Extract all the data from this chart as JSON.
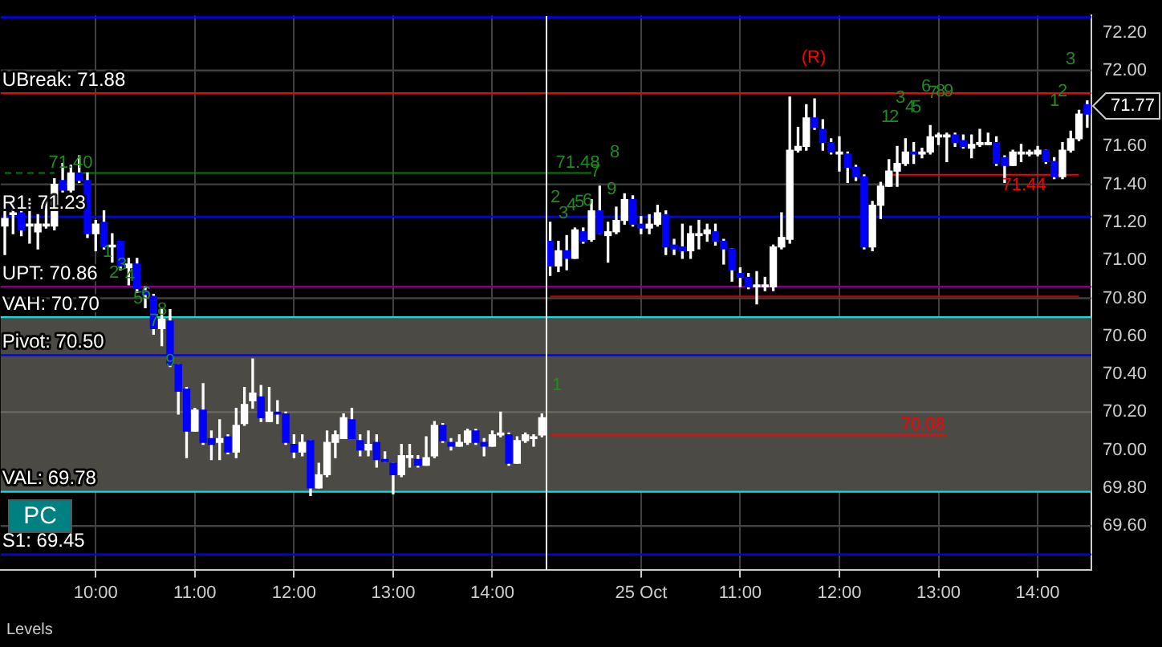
{
  "chart_data": {
    "type": "candlestick",
    "ylim": [
      69.37,
      72.29
    ],
    "categories": [
      null,
      null,
      null,
      null,
      null,
      null,
      null,
      null,
      null,
      null,
      null,
      "10:00",
      null,
      null,
      null,
      null,
      null,
      null,
      null,
      null,
      null,
      null,
      null,
      "11:00",
      null,
      null,
      null,
      null,
      null,
      null,
      null,
      null,
      null,
      null,
      null,
      "12:00",
      null,
      null,
      null,
      null,
      null,
      null,
      null,
      null,
      null,
      null,
      null,
      "13:00",
      null,
      null,
      null,
      null,
      null,
      null,
      null,
      null,
      null,
      null,
      null,
      "14:00",
      null,
      null,
      null,
      null,
      null,
      null,
      null,
      null,
      null,
      null,
      null,
      null,
      null,
      null,
      null,
      null,
      null,
      "25 Oct",
      null,
      null,
      null,
      null,
      null,
      null,
      null,
      null,
      null,
      null,
      null,
      "11:00",
      null,
      null,
      null,
      null,
      null,
      null,
      null,
      null,
      null,
      null,
      null,
      "12:00",
      null,
      null,
      null,
      null,
      null,
      null,
      null,
      null,
      null,
      null,
      null,
      "13:00",
      null,
      null,
      null,
      null,
      null,
      null,
      null,
      null,
      null,
      null,
      null,
      "14:00",
      null,
      null,
      null,
      null,
      null,
      null
    ],
    "yticks": [
      {
        "value": 69.6,
        "label": "69.60"
      },
      {
        "value": 69.8,
        "label": "69.80"
      },
      {
        "value": 70,
        "label": "70.00"
      },
      {
        "value": 70.2,
        "label": "70.20"
      },
      {
        "value": 70.4,
        "label": "70.40"
      },
      {
        "value": 70.6,
        "label": "70.60"
      },
      {
        "value": 70.8,
        "label": "70.80"
      },
      {
        "value": 71,
        "label": "71.00"
      },
      {
        "value": 71.2,
        "label": "71.20"
      },
      {
        "value": 71.4,
        "label": "71.40"
      },
      {
        "value": 71.6,
        "label": "71.60"
      },
      {
        "value": 72,
        "label": "72.00"
      },
      {
        "value": 72.2,
        "label": "72.20"
      }
    ],
    "grid": "x",
    "legend": false,
    "series": [
      {
        "type": "line",
        "color": "#008000",
        "line_style": "dashed",
        "marker": "none",
        "values": [
          71.46,
          71.46,
          71.46,
          71.46,
          71.46,
          71.46,
          71.46,
          null,
          null,
          null,
          null,
          null,
          null,
          null,
          null,
          null,
          null,
          null,
          null,
          null,
          null,
          null,
          null,
          null,
          null,
          null,
          null,
          null,
          null,
          null,
          null,
          null,
          null,
          null,
          null,
          null,
          null,
          null,
          null,
          null,
          null,
          null,
          null,
          null,
          null,
          null,
          null,
          null,
          null,
          null,
          null,
          null,
          null,
          null,
          null,
          null,
          null,
          null,
          null,
          null,
          null,
          null,
          null,
          null,
          null,
          null,
          null,
          null,
          null,
          null,
          null,
          null,
          null,
          null,
          null,
          null,
          null,
          null,
          null,
          null,
          null,
          null,
          null,
          null,
          null,
          null,
          null,
          null,
          null,
          null,
          null,
          null,
          null,
          null,
          null,
          null,
          null,
          null,
          null,
          null,
          null,
          null,
          null,
          null,
          null,
          null,
          null,
          null,
          null,
          null,
          null,
          null,
          null,
          null,
          null,
          null,
          null,
          null,
          null,
          null,
          null,
          null,
          null,
          null,
          null,
          null,
          null,
          null,
          null,
          null,
          null,
          null
        ]
      },
      {
        "type": "line",
        "color": "#008000",
        "line_style": "solid",
        "marker": "none",
        "values": [
          null,
          null,
          null,
          null,
          null,
          null,
          null,
          null,
          null,
          71.46,
          71.46,
          71.46,
          71.46,
          71.46,
          71.46,
          71.46,
          71.46,
          71.46,
          71.46,
          71.46,
          71.46,
          71.46,
          71.46,
          71.46,
          71.46,
          71.46,
          71.46,
          71.46,
          71.46,
          71.46,
          71.46,
          71.46,
          71.46,
          71.46,
          71.46,
          71.46,
          71.46,
          71.46,
          71.46,
          71.46,
          71.46,
          71.46,
          71.46,
          71.46,
          71.46,
          71.46,
          71.46,
          71.46,
          71.46,
          71.46,
          71.46,
          71.46,
          71.46,
          71.46,
          71.46,
          71.46,
          71.46,
          71.46,
          71.46,
          71.46,
          71.46,
          71.46,
          71.46,
          71.46,
          71.46,
          71.46,
          71.46,
          71.46,
          71.46,
          71.46,
          71.46,
          71.46,
          null,
          null,
          null,
          null,
          null,
          null,
          null,
          null,
          null,
          null,
          null,
          null,
          null,
          null,
          null,
          null,
          null,
          null,
          null,
          null,
          null,
          null,
          null,
          null,
          null,
          null,
          null,
          null,
          null,
          null,
          null,
          null,
          null,
          null,
          null,
          null,
          null,
          null,
          null,
          null,
          null,
          null,
          null,
          null,
          null,
          null,
          null,
          null,
          null,
          null,
          null,
          null,
          null,
          null,
          null,
          null,
          null,
          null,
          null,
          null
        ]
      },
      {
        "type": "line",
        "color": "#ff0000",
        "line_style": "solid",
        "marker": "none",
        "values": [
          null,
          null,
          null,
          null,
          null,
          null,
          null,
          null,
          null,
          null,
          null,
          null,
          null,
          null,
          null,
          null,
          null,
          null,
          null,
          null,
          null,
          null,
          null,
          null,
          null,
          null,
          null,
          null,
          null,
          null,
          null,
          null,
          null,
          null,
          null,
          null,
          null,
          null,
          null,
          null,
          null,
          null,
          null,
          null,
          null,
          null,
          null,
          null,
          null,
          null,
          null,
          null,
          null,
          null,
          null,
          null,
          null,
          null,
          null,
          null,
          null,
          null,
          null,
          null,
          null,
          null,
          70.08,
          70.08,
          70.08,
          70.08,
          70.08,
          70.08,
          70.08,
          70.08,
          70.08,
          70.08,
          70.08,
          70.08,
          70.08,
          70.08,
          70.08,
          70.08,
          70.08,
          70.08,
          70.08,
          70.08,
          70.08,
          70.08,
          70.08,
          70.08,
          70.08,
          70.08,
          70.08,
          70.08,
          70.08,
          70.08,
          70.08,
          70.08,
          70.08,
          70.08,
          70.08,
          70.08,
          70.08,
          70.08,
          70.08,
          70.08,
          70.08,
          70.08,
          70.08,
          70.08,
          70.08,
          70.08,
          70.08,
          70.08,
          70.08,
          null,
          null,
          null,
          null,
          null,
          null,
          null,
          null,
          null,
          null,
          null,
          null,
          null,
          null,
          null,
          null,
          null
        ]
      },
      {
        "type": "line",
        "color": "#ff0000",
        "line_style": "solid",
        "marker": "none",
        "values": [
          null,
          null,
          null,
          null,
          null,
          null,
          null,
          null,
          null,
          null,
          null,
          null,
          null,
          null,
          null,
          null,
          null,
          null,
          null,
          null,
          null,
          null,
          null,
          null,
          null,
          null,
          null,
          null,
          null,
          null,
          null,
          null,
          null,
          null,
          null,
          null,
          null,
          null,
          null,
          null,
          null,
          null,
          null,
          null,
          null,
          null,
          null,
          null,
          null,
          null,
          null,
          null,
          null,
          null,
          null,
          null,
          null,
          null,
          null,
          null,
          null,
          null,
          null,
          null,
          null,
          null,
          null,
          null,
          null,
          null,
          null,
          null,
          null,
          null,
          null,
          null,
          null,
          null,
          null,
          null,
          null,
          null,
          null,
          null,
          null,
          null,
          null,
          null,
          null,
          null,
          null,
          null,
          null,
          null,
          null,
          null,
          null,
          null,
          null,
          null,
          null,
          null,
          null,
          null,
          null,
          null,
          null,
          71.45,
          71.45,
          71.45,
          71.45,
          71.45,
          71.45,
          71.45,
          71.45,
          71.45,
          71.45,
          71.45,
          71.45,
          71.45,
          71.45,
          71.45,
          71.45,
          71.45,
          71.45,
          71.45,
          71.45,
          71.45,
          71.45,
          71.45,
          71.45,
          null
        ]
      },
      {
        "type": "line",
        "color": "#c00000",
        "line_style": "solid",
        "marker": "none",
        "values": [
          null,
          null,
          null,
          null,
          null,
          null,
          null,
          null,
          null,
          null,
          null,
          null,
          null,
          null,
          null,
          null,
          null,
          null,
          null,
          null,
          null,
          null,
          null,
          null,
          null,
          null,
          null,
          null,
          null,
          null,
          null,
          null,
          null,
          null,
          null,
          null,
          null,
          null,
          null,
          null,
          null,
          null,
          null,
          null,
          null,
          null,
          null,
          null,
          null,
          null,
          null,
          null,
          null,
          null,
          null,
          null,
          null,
          null,
          null,
          null,
          null,
          null,
          null,
          null,
          null,
          null,
          70.81,
          70.81,
          70.81,
          70.81,
          70.81,
          70.81,
          70.81,
          70.81,
          70.81,
          70.81,
          70.81,
          70.81,
          70.81,
          70.81,
          70.81,
          70.81,
          70.81,
          70.81,
          70.81,
          70.81,
          70.81,
          70.81,
          70.81,
          70.81,
          70.81,
          70.81,
          70.81,
          70.81,
          70.81,
          70.81,
          70.81,
          70.81,
          70.81,
          70.81,
          70.81,
          70.81,
          70.81,
          70.81,
          70.81,
          70.81,
          70.81,
          70.81,
          70.81,
          70.81,
          70.81,
          70.81,
          70.81,
          70.81,
          70.81,
          70.81,
          70.81,
          70.81,
          70.81,
          70.81,
          70.81,
          70.81,
          70.81,
          70.81,
          70.81,
          70.81,
          70.81,
          70.81,
          70.81,
          70.81,
          70.81,
          null
        ]
      },
      {
        "ohlc": [
          [
            71.18,
            71.27,
            71.03,
            71.22
          ],
          [
            71.24,
            71.31,
            71.14,
            71.25
          ],
          [
            71.25,
            71.28,
            71.13,
            71.16
          ],
          [
            71.18,
            71.32,
            71.09,
            71.19
          ],
          [
            71.15,
            71.24,
            71.06,
            71.19
          ],
          [
            71.18,
            71.33,
            71.17,
            71.19
          ],
          [
            71.18,
            71.43,
            71.16,
            71.4
          ],
          [
            71.42,
            71.51,
            71.36,
            71.37
          ],
          [
            71.37,
            71.5,
            71.36,
            71.46
          ],
          [
            71.46,
            71.55,
            71.41,
            71.42
          ],
          [
            71.42,
            71.46,
            71.12,
            71.14
          ],
          [
            71.14,
            71.21,
            71.05,
            71.19
          ],
          [
            71.2,
            71.26,
            71.06,
            71.07
          ],
          [
            71.07,
            71.14,
            70.99,
            71.08
          ],
          [
            71.1,
            71.1,
            70.95,
            70.97
          ],
          [
            70.96,
            71.01,
            70.87,
            70.98
          ],
          [
            70.98,
            71.01,
            70.83,
            70.85
          ],
          [
            70.84,
            70.86,
            70.75,
            70.82
          ],
          [
            70.81,
            70.82,
            70.61,
            70.64
          ],
          [
            70.64,
            70.74,
            70.55,
            70.69
          ],
          [
            70.68,
            70.74,
            70.44,
            70.45
          ],
          [
            70.45,
            70.45,
            70.19,
            70.31
          ],
          [
            70.32,
            70.33,
            69.96,
            70.1
          ],
          [
            70.1,
            70.22,
            70.1,
            70.21
          ],
          [
            70.21,
            70.35,
            70.03,
            70.04
          ],
          [
            70.06,
            70.1,
            69.95,
            70.03
          ],
          [
            70.04,
            70.16,
            69.95,
            70.06
          ],
          [
            70.07,
            70.08,
            69.98,
            69.99
          ],
          [
            69.99,
            70.22,
            69.96,
            70.13
          ],
          [
            70.14,
            70.33,
            70.13,
            70.24
          ],
          [
            70.26,
            70.48,
            70.22,
            70.3
          ],
          [
            70.28,
            70.34,
            70.15,
            70.17
          ],
          [
            70.15,
            70.33,
            70.15,
            70.2
          ],
          [
            70.2,
            70.26,
            70.14,
            70.19
          ],
          [
            70.19,
            70.2,
            70.03,
            70.04
          ],
          [
            70.03,
            70.08,
            69.96,
            69.99
          ],
          [
            69.99,
            70.08,
            69.97,
            70.04
          ],
          [
            70.05,
            70.05,
            69.76,
            69.8
          ],
          [
            69.8,
            69.93,
            69.8,
            69.87
          ],
          [
            69.87,
            70.1,
            69.86,
            70.04
          ],
          [
            70.04,
            70.1,
            69.96,
            70.08
          ],
          [
            70.06,
            70.19,
            70.06,
            70.17
          ],
          [
            70.16,
            70.22,
            70.06,
            70.06
          ],
          [
            70.05,
            70.08,
            69.97,
            70.0
          ],
          [
            70.0,
            70.1,
            69.97,
            70.03
          ],
          [
            70.04,
            70.08,
            69.91,
            69.95
          ],
          [
            69.95,
            69.99,
            69.94,
            69.94
          ],
          [
            69.93,
            69.93,
            69.77,
            69.87
          ],
          [
            69.87,
            70.03,
            69.86,
            69.97
          ],
          [
            69.96,
            70.03,
            69.91,
            69.97
          ],
          [
            69.95,
            69.97,
            69.91,
            69.92
          ],
          [
            69.92,
            70.07,
            69.92,
            69.96
          ],
          [
            69.97,
            70.15,
            69.96,
            70.13
          ],
          [
            70.13,
            70.14,
            70.04,
            70.05
          ],
          [
            70.04,
            70.06,
            70.0,
            70.02
          ],
          [
            70.02,
            70.08,
            70.02,
            70.04
          ],
          [
            70.04,
            70.11,
            70.03,
            70.1
          ],
          [
            70.1,
            70.11,
            70.03,
            70.04
          ],
          [
            70.04,
            70.06,
            69.97,
            70.02
          ],
          [
            70.02,
            70.1,
            70.02,
            70.08
          ],
          [
            70.08,
            70.2,
            70.07,
            70.09
          ],
          [
            70.08,
            70.09,
            69.92,
            69.93
          ],
          [
            69.93,
            70.07,
            69.93,
            70.05
          ],
          [
            70.05,
            70.09,
            70.04,
            70.08
          ],
          [
            70.06,
            70.08,
            70.02,
            70.07
          ],
          [
            70.08,
            70.19,
            70.07,
            70.17
          ],
          [
            71.1,
            71.2,
            70.92,
            70.97
          ],
          [
            70.97,
            71.1,
            70.94,
            71.05
          ],
          [
            71.05,
            71.13,
            70.95,
            71.01
          ],
          [
            71.01,
            71.17,
            71.01,
            71.16
          ],
          [
            71.15,
            71.17,
            71.09,
            71.1
          ],
          [
            71.11,
            71.32,
            71.1,
            71.26
          ],
          [
            71.26,
            71.39,
            71.14,
            71.14
          ],
          [
            71.13,
            71.2,
            70.99,
            71.15
          ],
          [
            71.15,
            71.28,
            71.14,
            71.21
          ],
          [
            71.21,
            71.35,
            71.19,
            71.32
          ],
          [
            71.32,
            71.34,
            71.18,
            71.19
          ],
          [
            71.19,
            71.23,
            71.14,
            71.17
          ],
          [
            71.17,
            71.24,
            71.14,
            71.19
          ],
          [
            71.19,
            71.29,
            71.18,
            71.25
          ],
          [
            71.24,
            71.26,
            71.03,
            71.07
          ],
          [
            71.08,
            71.11,
            71.03,
            71.06
          ],
          [
            71.07,
            71.19,
            71.01,
            71.05
          ],
          [
            71.05,
            71.18,
            71.01,
            71.14
          ],
          [
            71.13,
            71.21,
            71.06,
            71.14
          ],
          [
            71.14,
            71.19,
            71.1,
            71.16
          ],
          [
            71.15,
            71.19,
            71.08,
            71.1
          ],
          [
            71.1,
            71.11,
            70.98,
            71.06
          ],
          [
            71.06,
            71.06,
            70.89,
            70.95
          ],
          [
            70.93,
            70.96,
            70.86,
            70.91
          ],
          [
            70.91,
            70.93,
            70.85,
            70.86
          ],
          [
            70.86,
            70.94,
            70.77,
            70.87
          ],
          [
            70.86,
            70.91,
            70.84,
            70.87
          ],
          [
            70.86,
            71.08,
            70.84,
            71.07
          ],
          [
            71.07,
            71.25,
            71.06,
            71.12
          ],
          [
            71.11,
            71.86,
            71.09,
            71.58
          ],
          [
            71.58,
            71.7,
            71.57,
            71.6
          ],
          [
            71.6,
            71.82,
            71.58,
            71.75
          ],
          [
            71.75,
            71.85,
            71.69,
            71.7
          ],
          [
            71.69,
            71.74,
            71.58,
            71.62
          ],
          [
            71.62,
            71.64,
            71.56,
            71.57
          ],
          [
            71.56,
            71.65,
            71.47,
            71.57
          ],
          [
            71.56,
            71.57,
            71.41,
            71.49
          ],
          [
            71.49,
            71.5,
            71.42,
            71.44
          ],
          [
            71.44,
            71.45,
            71.06,
            71.07
          ],
          [
            71.07,
            71.31,
            71.05,
            71.29
          ],
          [
            71.29,
            71.41,
            71.22,
            71.39
          ],
          [
            71.39,
            71.53,
            71.39,
            71.47
          ],
          [
            71.47,
            71.6,
            71.39,
            71.51
          ],
          [
            71.51,
            71.64,
            71.5,
            71.57
          ],
          [
            71.57,
            71.62,
            71.51,
            71.56
          ],
          [
            71.56,
            71.59,
            71.54,
            71.57
          ],
          [
            71.57,
            71.71,
            71.56,
            71.65
          ],
          [
            71.65,
            71.67,
            71.61,
            71.66
          ],
          [
            71.65,
            71.67,
            71.52,
            71.66
          ],
          [
            71.66,
            71.67,
            71.6,
            71.62
          ],
          [
            71.63,
            71.66,
            71.59,
            71.6
          ],
          [
            71.59,
            71.66,
            71.54,
            71.61
          ],
          [
            71.61,
            71.69,
            71.6,
            71.62
          ],
          [
            71.61,
            71.67,
            71.61,
            71.62
          ],
          [
            71.62,
            71.65,
            71.5,
            71.51
          ],
          [
            71.54,
            71.55,
            71.41,
            71.5
          ],
          [
            71.5,
            71.58,
            71.5,
            71.57
          ],
          [
            71.56,
            71.61,
            71.52,
            71.57
          ],
          [
            71.56,
            71.58,
            71.55,
            71.57
          ],
          [
            71.56,
            71.6,
            71.55,
            71.58
          ],
          [
            71.58,
            71.58,
            71.51,
            71.52
          ],
          [
            71.52,
            71.54,
            71.43,
            71.44
          ],
          [
            71.44,
            71.62,
            71.43,
            71.58
          ],
          [
            71.58,
            71.68,
            71.57,
            71.64
          ],
          [
            71.64,
            71.79,
            71.63,
            71.77
          ],
          [
            71.82,
            71.84,
            71.7,
            71.77
          ]
        ],
        "colors": [
          "#ffffff",
          "#ffffff",
          "#0000ff",
          "#ffffff",
          "#ffffff",
          "#ffffff",
          "#ffffff",
          "#0000ff",
          "#ffffff",
          "#0000ff",
          "#0000ff",
          "#ffffff",
          "#0000ff",
          "#ffffff",
          "#0000ff",
          "#ffffff",
          "#0000ff",
          "#0000ff",
          "#0000ff",
          "#ffffff",
          "#0000ff",
          "#0000ff",
          "#0000ff",
          "#ffffff",
          "#0000ff",
          "#0000ff",
          "#ffffff",
          "#0000ff",
          "#ffffff",
          "#ffffff",
          "#ffffff",
          "#0000ff",
          "#ffffff",
          "#0000ff",
          "#0000ff",
          "#0000ff",
          "#ffffff",
          "#0000ff",
          "#ffffff",
          "#ffffff",
          "#ffffff",
          "#ffffff",
          "#0000ff",
          "#0000ff",
          "#ffffff",
          "#0000ff",
          "#0000ff",
          "#0000ff",
          "#ffffff",
          "#ffffff",
          "#0000ff",
          "#ffffff",
          "#ffffff",
          "#0000ff",
          "#0000ff",
          "#ffffff",
          "#ffffff",
          "#0000ff",
          "#0000ff",
          "#ffffff",
          "#ffffff",
          "#0000ff",
          "#ffffff",
          "#ffffff",
          "#ffffff",
          "#ffffff",
          "#0000ff",
          "#ffffff",
          "#0000ff",
          "#ffffff",
          "#0000ff",
          "#ffffff",
          "#0000ff",
          "#ffffff",
          "#ffffff",
          "#ffffff",
          "#0000ff",
          "#0000ff",
          "#ffffff",
          "#ffffff",
          "#0000ff",
          "#0000ff",
          "#0000ff",
          "#ffffff",
          "#ffffff",
          "#ffffff",
          "#0000ff",
          "#0000ff",
          "#0000ff",
          "#0000ff",
          "#0000ff",
          "#ffffff",
          "#ffffff",
          "#ffffff",
          "#ffffff",
          "#ffffff",
          "#ffffff",
          "#ffffff",
          "#0000ff",
          "#0000ff",
          "#0000ff",
          "#ffffff",
          "#0000ff",
          "#0000ff",
          "#0000ff",
          "#ffffff",
          "#ffffff",
          "#ffffff",
          "#ffffff",
          "#ffffff",
          "#0000ff",
          "#ffffff",
          "#ffffff",
          "#ffffff",
          "#ffffff",
          "#0000ff",
          "#0000ff",
          "#ffffff",
          "#ffffff",
          "#ffffff",
          "#0000ff",
          "#0000ff",
          "#ffffff",
          "#ffffff",
          "#ffffff",
          "#ffffff",
          "#0000ff",
          "#0000ff",
          "#ffffff",
          "#ffffff",
          "#ffffff",
          "#0000ff"
        ]
      }
    ],
    "bands": [
      {
        "axis": "y",
        "from": 69.78,
        "to": 70.7,
        "color": "#4b4a44"
      }
    ],
    "ref_lines": [
      {
        "axis": "y",
        "value": 72,
        "color": "#404040"
      },
      {
        "axis": "y",
        "value": 71.4,
        "color": "#404040"
      },
      {
        "axis": "y",
        "value": 70.8,
        "color": "#404040"
      },
      {
        "axis": "y",
        "value": 70.2,
        "color": "#6a6a64"
      },
      {
        "axis": "y",
        "value": 69.6,
        "color": "#404040"
      },
      {
        "axis": "y",
        "value": 72.28,
        "color": "#0000ff"
      },
      {
        "axis": "y",
        "value": 71.88,
        "color": "#ff0000",
        "label": "UBreak: 71.88"
      },
      {
        "axis": "y",
        "value": 71.23,
        "color": "#0000ff",
        "label": "R1: 71.23"
      },
      {
        "axis": "y",
        "value": 70.86,
        "color": "#800080",
        "label": "UPT: 70.86"
      },
      {
        "axis": "y",
        "value": 70.7,
        "color": "#00e5e5",
        "label": "VAH: 70.70"
      },
      {
        "axis": "y",
        "value": 70.5,
        "color": "#0000ff",
        "label": "Pivot: 70.50"
      },
      {
        "axis": "y",
        "value": 69.78,
        "color": "#00e5e5",
        "label": "VAL: 69.78"
      },
      {
        "axis": "y",
        "value": 69.45,
        "color": "#0000ff",
        "label": "S1: 69.45"
      }
    ],
    "annotations": [
      {
        "text": "71.40",
        "y": 71.46
      },
      "1",
      "2",
      "3",
      "4",
      "5",
      "6",
      "7",
      "8",
      "9",
      "1",
      "2",
      "3",
      "4",
      "5",
      "6",
      {
        "text": "71.48",
        "y": 71.46
      },
      "7",
      "8",
      "9",
      "(R)",
      "1",
      "2",
      "3",
      "4",
      "5",
      "6",
      "7",
      "8",
      "9",
      {
        "text": "70.08",
        "y": 70.08
      },
      {
        "text": "71.44",
        "y": 71.45
      },
      "1",
      "2",
      "3",
      "71.77",
      "PC",
      "Levels"
    ]
  }
}
